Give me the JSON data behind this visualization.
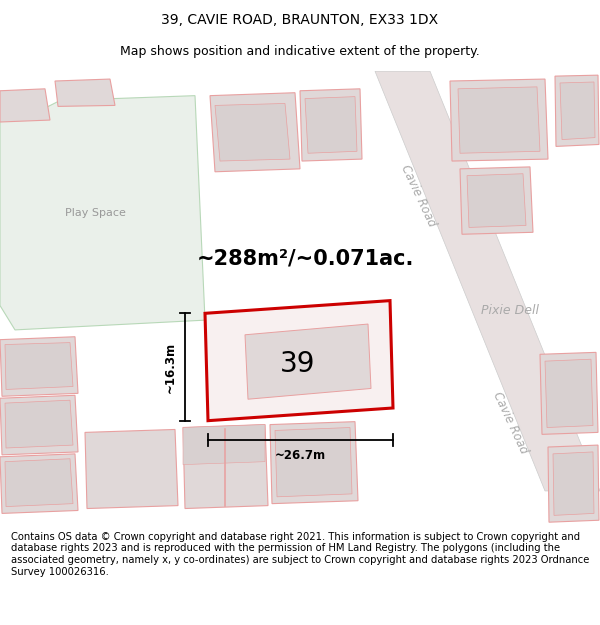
{
  "title": "39, CAVIE ROAD, BRAUNTON, EX33 1DX",
  "subtitle": "Map shows position and indicative extent of the property.",
  "area_text": "~288m²/~0.071ac.",
  "width_label": "~26.7m",
  "height_label": "~16.3m",
  "number_label": "39",
  "footer_text": "Contains OS data © Crown copyright and database right 2021. This information is subject to Crown copyright and database rights 2023 and is reproduced with the permission of HM Land Registry. The polygons (including the associated geometry, namely x, y co-ordinates) are subject to Crown copyright and database rights 2023 Ordnance Survey 100026316.",
  "bg_color": "#ffffff",
  "map_bg": "#ffffff",
  "play_space_color": "#eaf0ea",
  "road_color": "#e8e0e0",
  "building_fc": "#e0d8d8",
  "building_ec": "#e8a0a0",
  "inner_fc": "#d8d0d0",
  "road_label_cavie_1": "Cavie Road",
  "road_label_cavie_2": "Cavie Road",
  "road_label_pixie": "Pixie Dell",
  "play_space_label": "Play Space",
  "title_fontsize": 10,
  "subtitle_fontsize": 9,
  "footer_fontsize": 7.2,
  "area_fontsize": 15,
  "number_fontsize": 20,
  "dim_fontsize": 8.5
}
